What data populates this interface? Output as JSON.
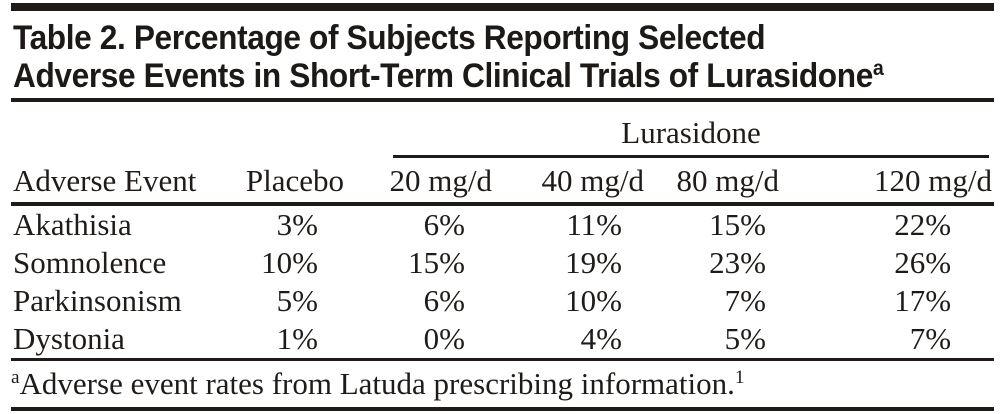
{
  "title": {
    "line1": "Table 2. Percentage of Subjects Reporting Selected",
    "line2": "Adverse Events in Short-Term Clinical Trials of Lurasidone",
    "superscript": "a"
  },
  "table": {
    "spanner_label": "Lurasidone",
    "columns": [
      "Adverse Event",
      "Placebo",
      "20 mg/d",
      "40 mg/d",
      "80 mg/d",
      "120 mg/d"
    ],
    "rows": [
      {
        "event": "Akathisia",
        "values": [
          "3%",
          "6%",
          "11%",
          "15%",
          "22%"
        ]
      },
      {
        "event": "Somnolence",
        "values": [
          "10%",
          "15%",
          "19%",
          "23%",
          "26%"
        ]
      },
      {
        "event": "Parkinsonism",
        "values": [
          "5%",
          "6%",
          "10%",
          "7%",
          "17%"
        ]
      },
      {
        "event": "Dystonia",
        "values": [
          "1%",
          "0%",
          "4%",
          "5%",
          "7%"
        ]
      }
    ]
  },
  "footnote": {
    "marker": "a",
    "text": "Adverse event rates from Latuda prescribing information.",
    "reference": "1"
  },
  "colors": {
    "text": "#1f1b18",
    "rule": "#1f1b18",
    "background": "#ffffff"
  },
  "chart_data": {
    "type": "table",
    "title": "Table 2. Percentage of Subjects Reporting Selected Adverse Events in Short-Term Clinical Trials of Lurasidone",
    "column_group": "Lurasidone",
    "columns": [
      "Adverse Event",
      "Placebo",
      "Lurasidone 20 mg/d",
      "Lurasidone 40 mg/d",
      "Lurasidone 80 mg/d",
      "Lurasidone 120 mg/d"
    ],
    "rows": [
      [
        "Akathisia",
        3,
        6,
        11,
        15,
        22
      ],
      [
        "Somnolence",
        10,
        15,
        19,
        23,
        26
      ],
      [
        "Parkinsonism",
        5,
        6,
        10,
        7,
        17
      ],
      [
        "Dystonia",
        1,
        0,
        4,
        5,
        7
      ]
    ],
    "units": "percent",
    "footnote": "Adverse event rates from Latuda prescribing information."
  }
}
